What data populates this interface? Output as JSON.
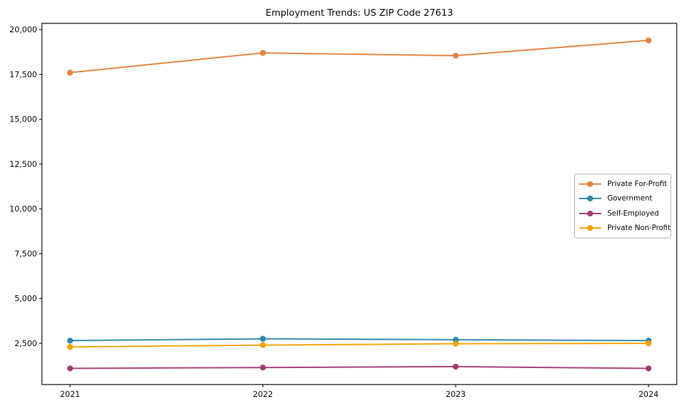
{
  "figure": {
    "background": "#ffffff",
    "axis_color": "#000000"
  },
  "chart_data": {
    "type": "line",
    "title": "Employment Trends: US ZIP Code 27613",
    "categories": [
      "2021",
      "2022",
      "2023",
      "2024"
    ],
    "series": [
      {
        "name": "Private For-Profit",
        "color": "#E2823D",
        "values": [
          17600,
          18700,
          18550,
          19400
        ]
      },
      {
        "name": "Government",
        "color": "#2E86AB",
        "values": [
          2650,
          2750,
          2700,
          2650
        ]
      },
      {
        "name": "Self-Employed",
        "color": "#A23B72",
        "values": [
          1100,
          1150,
          1200,
          1100
        ]
      },
      {
        "name": "Private Non-Profit",
        "color": "#F1A208",
        "values": [
          2300,
          2400,
          2475,
          2500
        ]
      }
    ],
    "yticks": [
      2500,
      5000,
      7500,
      10000,
      12500,
      15000,
      17500,
      20000
    ],
    "ytick_labels": [
      "2,500",
      "5,000",
      "7,500",
      "10,000",
      "12,500",
      "15,000",
      "17,500",
      "20,000"
    ],
    "ylim": [
      200,
      20350
    ],
    "xlabel": "",
    "ylabel": "",
    "grid": false,
    "legend_position": "center-right",
    "legend_border_color": "#b0b0b0"
  }
}
